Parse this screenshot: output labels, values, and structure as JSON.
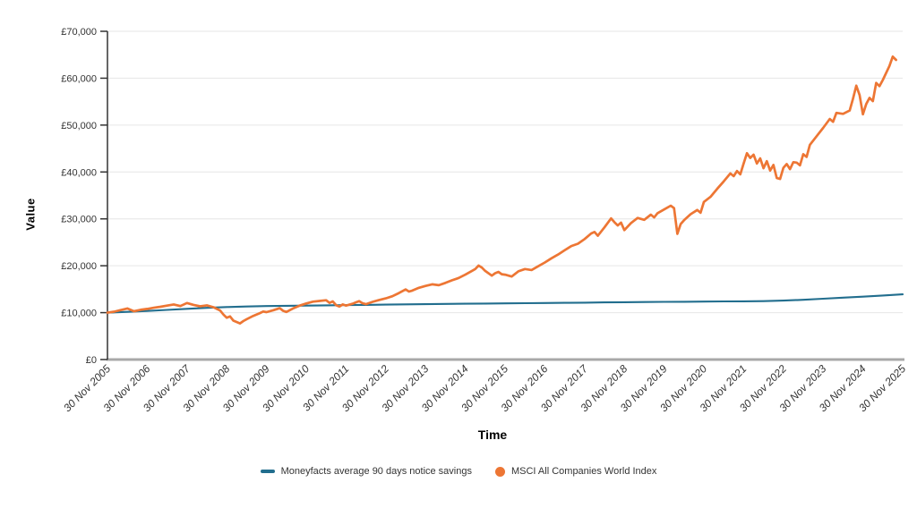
{
  "chart": {
    "y_axis_title": "Value",
    "x_axis_title": "Time",
    "colors": {
      "grid": "#e6e6e6",
      "axis_line": "#333333",
      "baseline": "#a8a8a8",
      "tick_text": "#333333",
      "moneyfacts": "#226e8e",
      "msci": "#ed7634"
    },
    "legend": [
      {
        "label": "Moneyfacts average 90 days notice savings",
        "color": "#226e8e",
        "marker": "dash"
      },
      {
        "label": "MSCI All Companies World Index",
        "color": "#ed7634",
        "marker": "circle"
      }
    ]
  },
  "chart_data": {
    "type": "line",
    "title": "",
    "xlabel": "Time",
    "ylabel": "Value",
    "x_unit": "months since 30 Nov 2005",
    "xlim": [
      0,
      240
    ],
    "ylim": [
      0,
      70000
    ],
    "grid": "horizontal-only",
    "legend_position": "bottom-center",
    "y_ticks": [
      {
        "v": 0,
        "label": "£0"
      },
      {
        "v": 10000,
        "label": "£10,000"
      },
      {
        "v": 20000,
        "label": "£20,000"
      },
      {
        "v": 30000,
        "label": "£30,000"
      },
      {
        "v": 40000,
        "label": "£40,000"
      },
      {
        "v": 50000,
        "label": "£50,000"
      },
      {
        "v": 60000,
        "label": "£60,000"
      },
      {
        "v": 70000,
        "label": "£70,000"
      }
    ],
    "x_ticks": [
      "30 Nov 2005",
      "30 Nov 2006",
      "30 Nov 2007",
      "30 Nov 2008",
      "30 Nov 2009",
      "30 Nov 2010",
      "30 Nov 2011",
      "30 Nov 2012",
      "30 Nov 2013",
      "30 Nov 2014",
      "30 Nov 2015",
      "30 Nov 2016",
      "30 Nov 2017",
      "30 Nov 2018",
      "30 Nov 2019",
      "30 Nov 2020",
      "30 Nov 2021",
      "30 Nov 2022",
      "30 Nov 2023",
      "30 Nov 2024",
      "30 Nov 2025"
    ],
    "series": [
      {
        "name": "Moneyfacts average 90 days notice savings",
        "color": "#226e8e",
        "width": 2.1,
        "points": [
          [
            0,
            10000
          ],
          [
            6,
            10170
          ],
          [
            12,
            10360
          ],
          [
            18,
            10580
          ],
          [
            24,
            10810
          ],
          [
            30,
            11030
          ],
          [
            36,
            11200
          ],
          [
            42,
            11320
          ],
          [
            48,
            11400
          ],
          [
            54,
            11460
          ],
          [
            60,
            11510
          ],
          [
            66,
            11560
          ],
          [
            72,
            11610
          ],
          [
            78,
            11660
          ],
          [
            84,
            11710
          ],
          [
            90,
            11760
          ],
          [
            96,
            11810
          ],
          [
            102,
            11855
          ],
          [
            108,
            11900
          ],
          [
            114,
            11940
          ],
          [
            120,
            11980
          ],
          [
            126,
            12020
          ],
          [
            132,
            12060
          ],
          [
            138,
            12100
          ],
          [
            144,
            12140
          ],
          [
            150,
            12180
          ],
          [
            156,
            12220
          ],
          [
            162,
            12260
          ],
          [
            168,
            12300
          ],
          [
            174,
            12330
          ],
          [
            180,
            12360
          ],
          [
            186,
            12390
          ],
          [
            192,
            12420
          ],
          [
            198,
            12460
          ],
          [
            204,
            12560
          ],
          [
            210,
            12750
          ],
          [
            216,
            12970
          ],
          [
            222,
            13190
          ],
          [
            228,
            13400
          ],
          [
            234,
            13650
          ],
          [
            240,
            13900
          ]
        ]
      },
      {
        "name": "MSCI All Companies World Index",
        "color": "#ed7634",
        "width": 2.7,
        "points": [
          [
            0,
            10000
          ],
          [
            2,
            10200
          ],
          [
            4,
            10550
          ],
          [
            6,
            10900
          ],
          [
            8,
            10300
          ],
          [
            10,
            10600
          ],
          [
            12,
            10800
          ],
          [
            14,
            11050
          ],
          [
            16,
            11250
          ],
          [
            18,
            11500
          ],
          [
            20,
            11750
          ],
          [
            22,
            11400
          ],
          [
            24,
            12050
          ],
          [
            26,
            11650
          ],
          [
            28,
            11350
          ],
          [
            30,
            11550
          ],
          [
            32,
            11150
          ],
          [
            34,
            10450
          ],
          [
            35,
            9600
          ],
          [
            36,
            8900
          ],
          [
            37,
            9200
          ],
          [
            38,
            8300
          ],
          [
            40,
            7700
          ],
          [
            41,
            8200
          ],
          [
            42,
            8600
          ],
          [
            44,
            9300
          ],
          [
            46,
            9900
          ],
          [
            47,
            10250
          ],
          [
            48,
            10100
          ],
          [
            50,
            10500
          ],
          [
            52,
            10950
          ],
          [
            53,
            10400
          ],
          [
            54,
            10150
          ],
          [
            56,
            10900
          ],
          [
            58,
            11500
          ],
          [
            60,
            11950
          ],
          [
            62,
            12350
          ],
          [
            64,
            12500
          ],
          [
            66,
            12650
          ],
          [
            67,
            12100
          ],
          [
            68,
            12400
          ],
          [
            69,
            11600
          ],
          [
            70,
            11300
          ],
          [
            71,
            11750
          ],
          [
            72,
            11500
          ],
          [
            74,
            11900
          ],
          [
            75,
            12200
          ],
          [
            76,
            12450
          ],
          [
            77,
            12000
          ],
          [
            78,
            11800
          ],
          [
            80,
            12300
          ],
          [
            82,
            12700
          ],
          [
            84,
            13050
          ],
          [
            86,
            13500
          ],
          [
            88,
            14200
          ],
          [
            90,
            14950
          ],
          [
            91,
            14500
          ],
          [
            92,
            14700
          ],
          [
            94,
            15300
          ],
          [
            96,
            15700
          ],
          [
            98,
            16050
          ],
          [
            100,
            15850
          ],
          [
            102,
            16350
          ],
          [
            104,
            16900
          ],
          [
            106,
            17400
          ],
          [
            108,
            18100
          ],
          [
            110,
            18900
          ],
          [
            111,
            19300
          ],
          [
            112,
            20050
          ],
          [
            113,
            19600
          ],
          [
            114,
            18900
          ],
          [
            116,
            17900
          ],
          [
            117,
            18400
          ],
          [
            118,
            18700
          ],
          [
            119,
            18200
          ],
          [
            120,
            18100
          ],
          [
            122,
            17700
          ],
          [
            124,
            18800
          ],
          [
            126,
            19300
          ],
          [
            128,
            19100
          ],
          [
            130,
            19900
          ],
          [
            132,
            20700
          ],
          [
            134,
            21600
          ],
          [
            136,
            22400
          ],
          [
            138,
            23300
          ],
          [
            140,
            24200
          ],
          [
            142,
            24700
          ],
          [
            144,
            25700
          ],
          [
            146,
            26900
          ],
          [
            147,
            27200
          ],
          [
            148,
            26400
          ],
          [
            150,
            28200
          ],
          [
            152,
            30100
          ],
          [
            153,
            29300
          ],
          [
            154,
            28600
          ],
          [
            155,
            29200
          ],
          [
            156,
            27600
          ],
          [
            158,
            29100
          ],
          [
            160,
            30200
          ],
          [
            162,
            29800
          ],
          [
            164,
            30900
          ],
          [
            165,
            30300
          ],
          [
            166,
            31200
          ],
          [
            168,
            32000
          ],
          [
            170,
            32800
          ],
          [
            171,
            32300
          ],
          [
            172,
            26800
          ],
          [
            173,
            28900
          ],
          [
            174,
            29700
          ],
          [
            176,
            31000
          ],
          [
            178,
            31900
          ],
          [
            179,
            31300
          ],
          [
            180,
            33600
          ],
          [
            182,
            34700
          ],
          [
            184,
            36400
          ],
          [
            186,
            38000
          ],
          [
            188,
            39700
          ],
          [
            189,
            39100
          ],
          [
            190,
            40200
          ],
          [
            191,
            39500
          ],
          [
            192,
            41800
          ],
          [
            193,
            44000
          ],
          [
            194,
            43000
          ],
          [
            195,
            43700
          ],
          [
            196,
            41800
          ],
          [
            197,
            42900
          ],
          [
            198,
            40800
          ],
          [
            199,
            42300
          ],
          [
            200,
            40300
          ],
          [
            201,
            41500
          ],
          [
            202,
            38700
          ],
          [
            203,
            38500
          ],
          [
            204,
            40900
          ],
          [
            205,
            41700
          ],
          [
            206,
            40600
          ],
          [
            207,
            42100
          ],
          [
            208,
            42000
          ],
          [
            209,
            41400
          ],
          [
            210,
            43800
          ],
          [
            211,
            43200
          ],
          [
            212,
            45800
          ],
          [
            214,
            47600
          ],
          [
            216,
            49400
          ],
          [
            218,
            51300
          ],
          [
            219,
            50700
          ],
          [
            220,
            52600
          ],
          [
            222,
            52400
          ],
          [
            224,
            53100
          ],
          [
            225,
            55600
          ],
          [
            226,
            58400
          ],
          [
            227,
            56400
          ],
          [
            228,
            52300
          ],
          [
            229,
            54500
          ],
          [
            230,
            55800
          ],
          [
            231,
            55100
          ],
          [
            232,
            59000
          ],
          [
            233,
            58300
          ],
          [
            234,
            59600
          ],
          [
            236,
            62600
          ],
          [
            237,
            64600
          ],
          [
            238,
            63900
          ]
        ]
      }
    ]
  }
}
